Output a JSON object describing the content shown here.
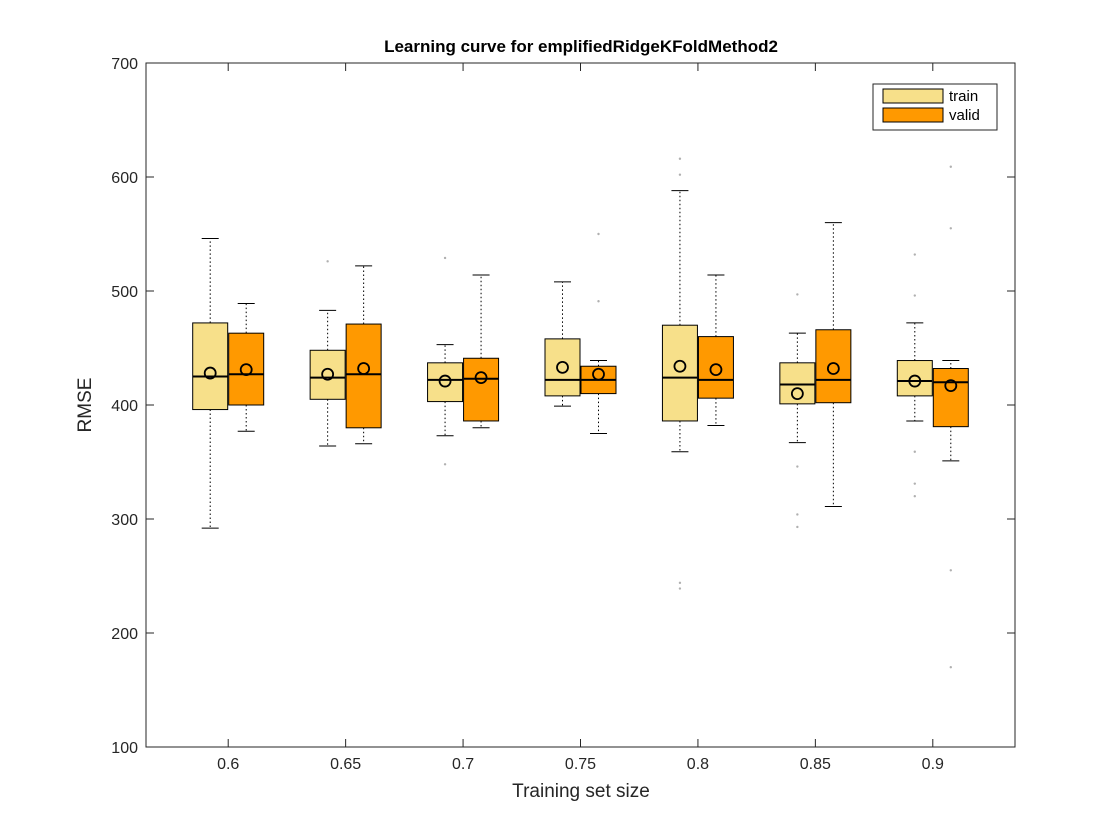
{
  "chart_data": {
    "type": "box",
    "title": "Learning curve for emplifiedRidgeKFoldMethod2",
    "xlabel": "Training set size",
    "ylabel": "RMSE",
    "ylim": [
      100,
      700
    ],
    "yticks": [
      100,
      200,
      300,
      400,
      500,
      600,
      700
    ],
    "categories": [
      "0.6",
      "0.65",
      "0.7",
      "0.75",
      "0.8",
      "0.85",
      "0.9"
    ],
    "legend": {
      "placement": "top-right"
    },
    "series": [
      {
        "name": "train",
        "color": "#f7e08a",
        "boxes": [
          {
            "whisker_low": 292,
            "q1": 396,
            "median": 425,
            "q3": 472,
            "whisker_high": 546,
            "mean": 428,
            "outliers": []
          },
          {
            "whisker_low": 364,
            "q1": 405,
            "median": 424,
            "q3": 448,
            "whisker_high": 483,
            "mean": 427,
            "outliers": [
              526
            ]
          },
          {
            "whisker_low": 373,
            "q1": 403,
            "median": 422,
            "q3": 437,
            "whisker_high": 453,
            "mean": 421,
            "outliers": [
              529,
              348
            ]
          },
          {
            "whisker_low": 399,
            "q1": 408,
            "median": 422,
            "q3": 458,
            "whisker_high": 508,
            "mean": 433,
            "outliers": []
          },
          {
            "whisker_low": 359,
            "q1": 386,
            "median": 424,
            "q3": 470,
            "whisker_high": 588,
            "mean": 434,
            "outliers": [
              616,
              602,
              244,
              239
            ]
          },
          {
            "whisker_low": 367,
            "q1": 401,
            "median": 418,
            "q3": 437,
            "whisker_high": 463,
            "mean": 410,
            "outliers": [
              497,
              346,
              304,
              293
            ]
          },
          {
            "whisker_low": 386,
            "q1": 408,
            "median": 421,
            "q3": 439,
            "whisker_high": 472,
            "mean": 421,
            "outliers": [
              532,
              496,
              359,
              331,
              320
            ]
          }
        ]
      },
      {
        "name": "valid",
        "color": "#ff9900",
        "boxes": [
          {
            "whisker_low": 377,
            "q1": 400,
            "median": 427,
            "q3": 463,
            "whisker_high": 489,
            "mean": 431,
            "outliers": []
          },
          {
            "whisker_low": 366,
            "q1": 380,
            "median": 427,
            "q3": 471,
            "whisker_high": 522,
            "mean": 432,
            "outliers": []
          },
          {
            "whisker_low": 380,
            "q1": 386,
            "median": 423,
            "q3": 441,
            "whisker_high": 514,
            "mean": 424,
            "outliers": []
          },
          {
            "whisker_low": 375,
            "q1": 410,
            "median": 422,
            "q3": 434,
            "whisker_high": 439,
            "mean": 427,
            "outliers": [
              550,
              491
            ]
          },
          {
            "whisker_low": 382,
            "q1": 406,
            "median": 422,
            "q3": 460,
            "whisker_high": 514,
            "mean": 431,
            "outliers": []
          },
          {
            "whisker_low": 311,
            "q1": 402,
            "median": 422,
            "q3": 466,
            "whisker_high": 560,
            "mean": 432,
            "outliers": []
          },
          {
            "whisker_low": 351,
            "q1": 381,
            "median": 420,
            "q3": 432,
            "whisker_high": 439,
            "mean": 417,
            "outliers": [
              609,
              555,
              255,
              170
            ]
          }
        ]
      }
    ],
    "grid": false
  }
}
